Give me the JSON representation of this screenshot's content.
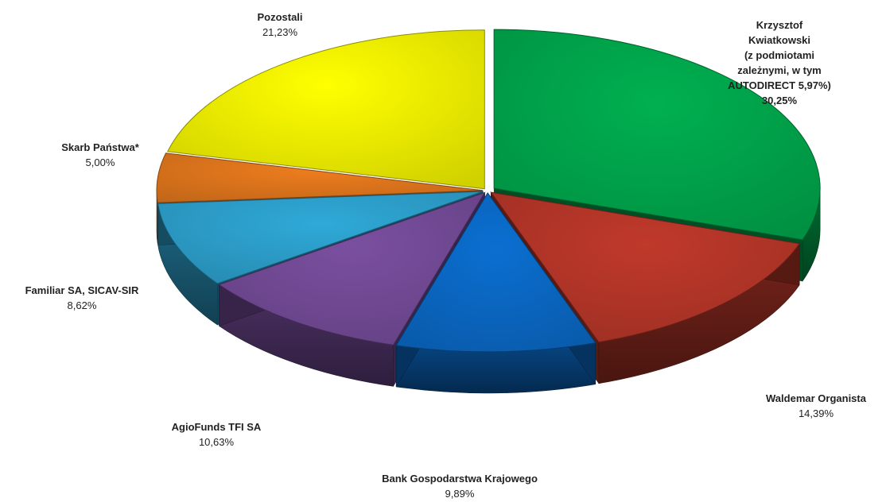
{
  "chart_data": {
    "type": "pie",
    "style": "3d-exploded",
    "legend": "none",
    "slices": [
      {
        "name": "Krzysztof Kwiatkowski\n(z podmiotami zależnymi, w tym\nAUTODIRECT 5,97%)",
        "value": 30.25,
        "label": "30,25%",
        "color": "#00B050"
      },
      {
        "name": "Waldemar Organista",
        "value": 14.39,
        "label": "14,39%",
        "color": "#C0392B"
      },
      {
        "name": "Bank Gospodarstwa Krajowego",
        "value": 9.89,
        "label": "9,89%",
        "color": "#0B6FD1"
      },
      {
        "name": "AgioFunds TFI SA",
        "value": 10.63,
        "label": "10,63%",
        "color": "#7A4FA0"
      },
      {
        "name": "Familiar SA, SICAV-SIR",
        "value": 8.62,
        "label": "8,62%",
        "color": "#2FA9D8"
      },
      {
        "name": "Skarb Państwa*",
        "value": 5.0,
        "label": "5,00%",
        "color": "#EE7D1E"
      },
      {
        "name": "Pozostali",
        "value": 21.23,
        "label": "21,23%",
        "color": "#FFFF00"
      }
    ]
  }
}
